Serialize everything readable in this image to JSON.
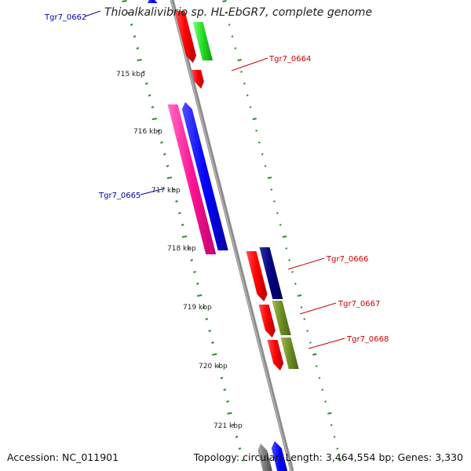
{
  "title": "Thioalkalivibrio sp. HL-EbGR7, complete genome",
  "footer": {
    "accession": "Accession: NC_011901",
    "topology": "Topology: circular; Length: 3,464,554 bp; Genes: 3,330"
  },
  "colors": {
    "backbone": "#8c8c8c",
    "ticks": "#2e8b2e",
    "label_forward": "#cc0000",
    "label_reverse": "#0000aa"
  },
  "ruler_labels": [
    "715 kbp",
    "716 kbp",
    "717 kbp",
    "718 kbp",
    "719 kbp",
    "720 kbp",
    "721 kbp"
  ],
  "gene_labels": [
    {
      "id": "Tgr7_0662",
      "strand": "reverse"
    },
    {
      "id": "Tgr7_0664",
      "strand": "forward"
    },
    {
      "id": "Tgr7_0665",
      "strand": "reverse"
    },
    {
      "id": "Tgr7_0666",
      "strand": "forward"
    },
    {
      "id": "Tgr7_0667",
      "strand": "forward"
    },
    {
      "id": "Tgr7_0668",
      "strand": "forward"
    }
  ]
}
